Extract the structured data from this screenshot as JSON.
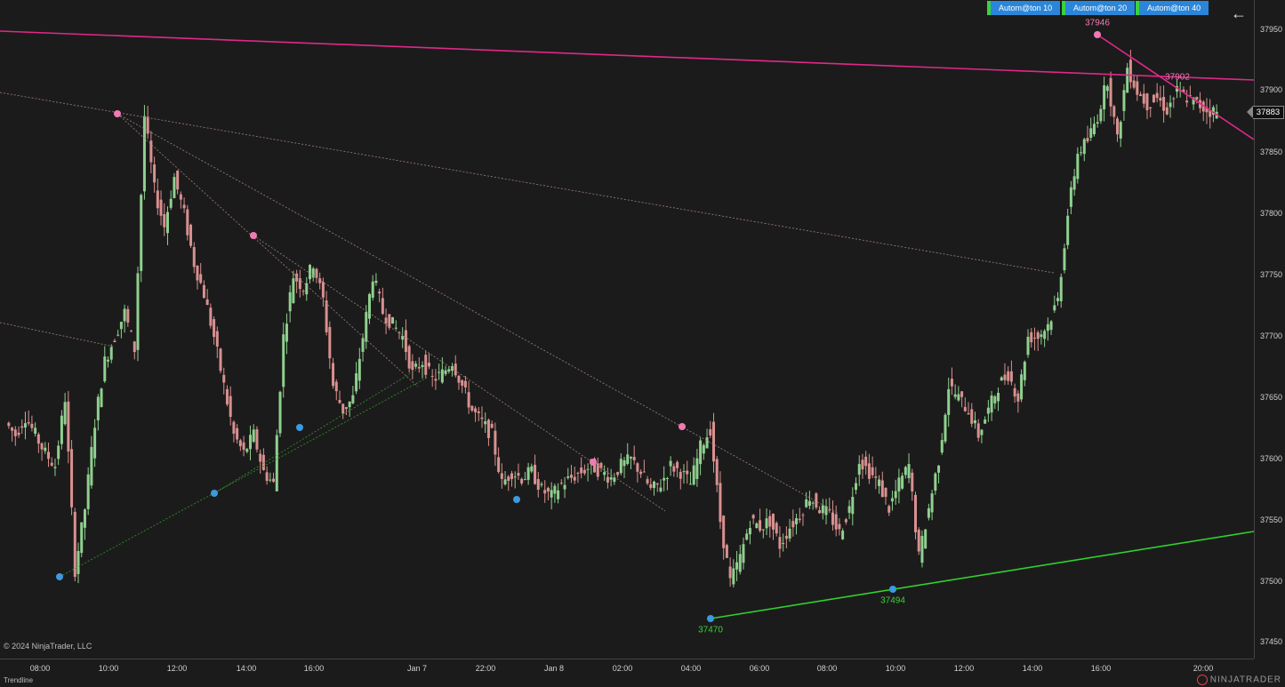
{
  "toolbar": {
    "buttons": [
      {
        "label": "Autom@ton  10"
      },
      {
        "label": "Autom@ton  20"
      },
      {
        "label": "Autom@ton  40"
      }
    ],
    "back_icon": "arrow-left-icon"
  },
  "y_axis": {
    "ticks": [
      "37950",
      "37900",
      "37850",
      "37800",
      "37750",
      "37700",
      "37650",
      "37600",
      "37550",
      "37500",
      "37450"
    ],
    "current_price": "37883"
  },
  "x_axis": {
    "ticks": [
      "08:00",
      "10:00",
      "12:00",
      "14:00",
      "16:00",
      "Jan 7",
      "22:00",
      "Jan 8",
      "02:00",
      "04:00",
      "06:00",
      "08:00",
      "10:00",
      "12:00",
      "14:00",
      "16:00",
      "20:00"
    ]
  },
  "annotations": {
    "high_label": "37946",
    "mid_label": "37902",
    "low1_label": "37470",
    "low2_label": "37494"
  },
  "footer": {
    "copyright": "© 2024 NinjaTrader, LLC",
    "status": "Trendline",
    "brand": "NINJATRADER"
  },
  "colors": {
    "background": "#1c1b1b",
    "up_candle": "#8fd08f",
    "down_candle": "#d99090",
    "resistance": "#e0288a",
    "support": "#2ed12e",
    "swing_high": "#f07ab5",
    "swing_low": "#3a9be0"
  },
  "chart_data": {
    "type": "candlestick",
    "ylim": [
      37430,
      37975
    ],
    "y_ticks": [
      37450,
      37500,
      37550,
      37600,
      37650,
      37700,
      37750,
      37800,
      37850,
      37900,
      37950
    ],
    "current_price": 37883,
    "price_path": [
      [
        0,
        37630
      ],
      [
        1,
        37620
      ],
      [
        2,
        37635
      ],
      [
        3,
        37620
      ],
      [
        4,
        37605
      ],
      [
        5,
        37595
      ],
      [
        6,
        37650
      ],
      [
        7,
        37510
      ],
      [
        8,
        37560
      ],
      [
        9,
        37630
      ],
      [
        10,
        37680
      ],
      [
        11,
        37700
      ],
      [
        12,
        37720
      ],
      [
        13,
        37690
      ],
      [
        14,
        37880
      ],
      [
        15,
        37820
      ],
      [
        16,
        37790
      ],
      [
        17,
        37830
      ],
      [
        18,
        37800
      ],
      [
        19,
        37760
      ],
      [
        20,
        37735
      ],
      [
        21,
        37700
      ],
      [
        22,
        37660
      ],
      [
        23,
        37620
      ],
      [
        24,
        37605
      ],
      [
        25,
        37620
      ],
      [
        26,
        37590
      ],
      [
        27,
        37580
      ],
      [
        28,
        37700
      ],
      [
        29,
        37750
      ],
      [
        30,
        37740
      ],
      [
        31,
        37760
      ],
      [
        32,
        37730
      ],
      [
        33,
        37660
      ],
      [
        34,
        37640
      ],
      [
        35,
        37650
      ],
      [
        36,
        37700
      ],
      [
        37,
        37750
      ],
      [
        38,
        37720
      ],
      [
        39,
        37710
      ],
      [
        40,
        37700
      ],
      [
        41,
        37670
      ],
      [
        42,
        37680
      ],
      [
        43,
        37665
      ],
      [
        44,
        37670
      ],
      [
        45,
        37680
      ],
      [
        46,
        37660
      ],
      [
        47,
        37640
      ],
      [
        48,
        37630
      ],
      [
        49,
        37620
      ],
      [
        50,
        37580
      ],
      [
        51,
        37590
      ],
      [
        52,
        37585
      ],
      [
        53,
        37590
      ],
      [
        54,
        37575
      ],
      [
        55,
        37570
      ],
      [
        56,
        37580
      ],
      [
        57,
        37585
      ],
      [
        58,
        37590
      ],
      [
        59,
        37595
      ],
      [
        60,
        37590
      ],
      [
        61,
        37585
      ],
      [
        62,
        37595
      ],
      [
        63,
        37600
      ],
      [
        64,
        37590
      ],
      [
        65,
        37575
      ],
      [
        66,
        37580
      ],
      [
        67,
        37595
      ],
      [
        68,
        37590
      ],
      [
        69,
        37580
      ],
      [
        70,
        37610
      ],
      [
        71,
        37625
      ],
      [
        72,
        37550
      ],
      [
        73,
        37500
      ],
      [
        74,
        37520
      ],
      [
        75,
        37550
      ],
      [
        76,
        37545
      ],
      [
        77,
        37550
      ],
      [
        78,
        37530
      ],
      [
        79,
        37545
      ],
      [
        80,
        37555
      ],
      [
        81,
        37570
      ],
      [
        82,
        37560
      ],
      [
        83,
        37555
      ],
      [
        84,
        37540
      ],
      [
        85,
        37560
      ],
      [
        86,
        37600
      ],
      [
        87,
        37590
      ],
      [
        88,
        37580
      ],
      [
        89,
        37560
      ],
      [
        90,
        37580
      ],
      [
        91,
        37595
      ],
      [
        92,
        37520
      ],
      [
        93,
        37560
      ],
      [
        94,
        37600
      ],
      [
        95,
        37660
      ],
      [
        96,
        37650
      ],
      [
        97,
        37640
      ],
      [
        98,
        37620
      ],
      [
        99,
        37640
      ],
      [
        100,
        37660
      ],
      [
        101,
        37670
      ],
      [
        102,
        37650
      ],
      [
        103,
        37700
      ],
      [
        104,
        37700
      ],
      [
        105,
        37710
      ],
      [
        106,
        37730
      ],
      [
        107,
        37800
      ],
      [
        108,
        37850
      ],
      [
        109,
        37860
      ],
      [
        110,
        37880
      ],
      [
        111,
        37910
      ],
      [
        112,
        37860
      ],
      [
        113,
        37920
      ],
      [
        114,
        37900
      ],
      [
        115,
        37890
      ],
      [
        116,
        37895
      ],
      [
        117,
        37885
      ],
      [
        118,
        37900
      ],
      [
        119,
        37895
      ],
      [
        120,
        37890
      ],
      [
        121,
        37885
      ],
      [
        122,
        37883
      ]
    ],
    "swing_points": [
      {
        "kind": "high",
        "price": 37880
      },
      {
        "kind": "high",
        "price": 37782
      },
      {
        "kind": "high",
        "price": 37598
      },
      {
        "kind": "high",
        "price": 37627
      },
      {
        "kind": "high",
        "price": 37946
      },
      {
        "kind": "low",
        "price": 37505
      },
      {
        "kind": "low",
        "price": 37572
      },
      {
        "kind": "low",
        "price": 37626
      },
      {
        "kind": "low",
        "price": 37567
      },
      {
        "kind": "low",
        "price": 37470
      },
      {
        "kind": "low",
        "price": 37494
      }
    ]
  }
}
